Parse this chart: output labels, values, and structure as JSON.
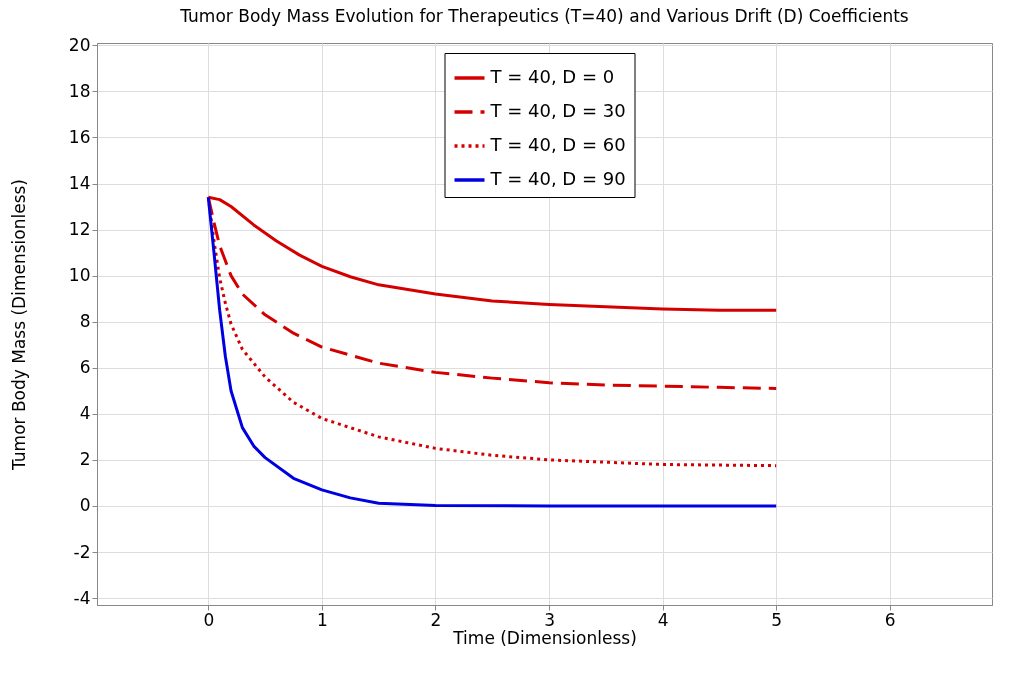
{
  "chart_data": {
    "type": "line",
    "title": "Tumor Body Mass Evolution for Therapeutics (T=40) and Various Drift (D) Coefficients",
    "xlabel": "Time (Dimensionless)",
    "ylabel": "Tumor Body Mass (Dimensionless)",
    "xlim": [
      -0.98,
      6.9
    ],
    "xticks": [
      0,
      1,
      2,
      3,
      4,
      5,
      6
    ],
    "ylim": [
      -4.3,
      20.1
    ],
    "yticks": [
      -4,
      -2,
      0,
      2,
      4,
      6,
      8,
      10,
      12,
      14,
      16,
      18,
      20
    ],
    "grid": true,
    "legend": "top",
    "marker": "none",
    "series": [
      {
        "name": "T = 40, D = 0",
        "color": "#d40000",
        "line_style": "solid",
        "x": [
          0,
          0.1,
          0.2,
          0.4,
          0.6,
          0.8,
          1,
          1.25,
          1.5,
          2,
          2.5,
          3,
          3.5,
          4,
          4.5,
          5
        ],
        "values": [
          13.4,
          13.3,
          13.0,
          12.2,
          11.5,
          10.9,
          10.4,
          9.95,
          9.6,
          9.2,
          8.9,
          8.75,
          8.65,
          8.55,
          8.5,
          8.5
        ]
      },
      {
        "name": "T = 40, D = 30",
        "color": "#d40000",
        "line_style": "dashed",
        "x": [
          0,
          0.05,
          0.1,
          0.2,
          0.3,
          0.5,
          0.75,
          1,
          1.5,
          2,
          2.5,
          3,
          3.5,
          4,
          4.5,
          5
        ],
        "values": [
          13.4,
          12.3,
          11.3,
          10.0,
          9.2,
          8.3,
          7.5,
          6.9,
          6.2,
          5.8,
          5.55,
          5.35,
          5.25,
          5.2,
          5.15,
          5.1
        ]
      },
      {
        "name": "T = 40, D = 60",
        "color": "#d40000",
        "line_style": "dotted",
        "x": [
          0,
          0.05,
          0.1,
          0.15,
          0.2,
          0.3,
          0.5,
          0.75,
          1,
          1.5,
          2,
          2.5,
          3,
          3.5,
          4,
          5
        ],
        "values": [
          13.4,
          11.5,
          9.9,
          8.8,
          7.9,
          6.8,
          5.6,
          4.5,
          3.8,
          3.0,
          2.5,
          2.2,
          2.0,
          1.9,
          1.8,
          1.75
        ]
      },
      {
        "name": "T = 40, D = 90",
        "color": "#0000e0",
        "line_style": "solid",
        "x": [
          0,
          0.05,
          0.1,
          0.15,
          0.2,
          0.3,
          0.4,
          0.5,
          0.75,
          1,
          1.25,
          1.5,
          2,
          3,
          5
        ],
        "values": [
          13.4,
          11.0,
          8.5,
          6.5,
          5.0,
          3.4,
          2.6,
          2.1,
          1.2,
          0.7,
          0.35,
          0.12,
          0.02,
          0,
          0
        ]
      }
    ]
  }
}
